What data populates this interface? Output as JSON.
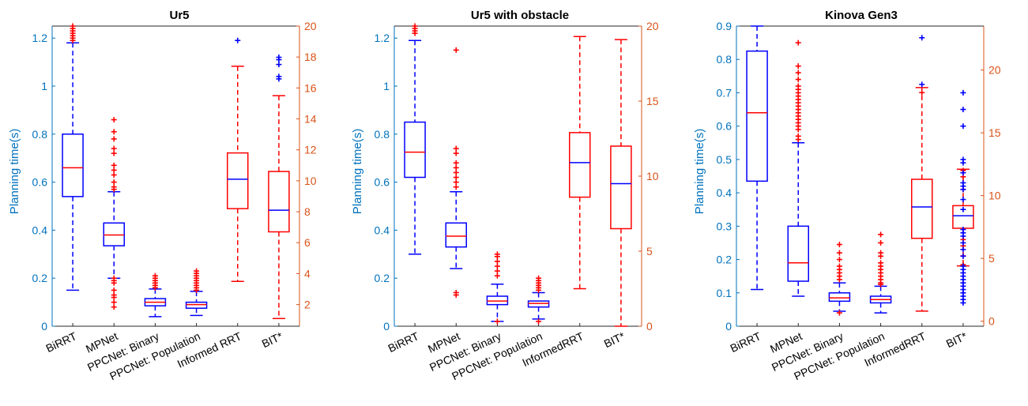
{
  "colors": {
    "left_axis": "#0072BD",
    "right_axis": "#D95319",
    "blue_series": "#0000FF",
    "red_series": "#FF0000",
    "axis_box": "#262626"
  },
  "chart_data": [
    {
      "type": "boxplot",
      "title": "Ur5",
      "ylabel": "Planning time(s)",
      "categories": [
        "BiRRT",
        "MPNet",
        "PPCNet: Binary",
        "PPCNet: Population",
        "Informed RRT",
        "BIT*"
      ],
      "left_ylim": [
        0,
        1.25
      ],
      "left_yticks": [
        "0",
        "0.2",
        "0.4",
        "0.6",
        "0.8",
        "1",
        "1.2"
      ],
      "left_ytick_values": [
        0,
        0.2,
        0.4,
        0.6,
        0.8,
        1.0,
        1.2
      ],
      "right_ylim": [
        0.6,
        20.0
      ],
      "right_yticks": [
        "2",
        "4",
        "6",
        "8",
        "10",
        "12",
        "14",
        "16",
        "18",
        "20"
      ],
      "right_ytick_values": [
        2,
        4,
        6,
        8,
        10,
        12,
        14,
        16,
        18,
        20
      ],
      "boxes": [
        {
          "category": "BiRRT",
          "axis": "left",
          "color": "blue",
          "whisker_low": 0.15,
          "q1": 0.54,
          "median": 0.66,
          "q3": 0.8,
          "whisker_high": 1.18,
          "outliers": [
            1.19,
            1.2,
            1.21,
            1.22,
            1.23,
            1.24,
            1.25
          ]
        },
        {
          "category": "MPNet",
          "axis": "left",
          "color": "blue",
          "whisker_low": 0.2,
          "q1": 0.335,
          "median": 0.38,
          "q3": 0.43,
          "whisker_high": 0.56,
          "outliers": [
            0.08,
            0.1,
            0.12,
            0.13,
            0.15,
            0.18,
            0.19,
            0.2,
            0.57,
            0.58,
            0.6,
            0.63,
            0.65,
            0.67,
            0.72,
            0.74,
            0.78,
            0.81,
            0.86
          ]
        },
        {
          "category": "PPCNet: Binary",
          "axis": "left",
          "color": "blue",
          "whisker_low": 0.04,
          "q1": 0.085,
          "median": 0.1,
          "q3": 0.115,
          "whisker_high": 0.155,
          "outliers": [
            0.16,
            0.17,
            0.18,
            0.19,
            0.2,
            0.21
          ]
        },
        {
          "category": "PPCNet: Population",
          "axis": "left",
          "color": "blue",
          "whisker_low": 0.045,
          "q1": 0.075,
          "median": 0.09,
          "q3": 0.1,
          "whisker_high": 0.145,
          "outliers": [
            0.15,
            0.16,
            0.17,
            0.18,
            0.19,
            0.2,
            0.21,
            0.22,
            0.23
          ]
        },
        {
          "category": "Informed RRT",
          "axis": "right",
          "color": "red",
          "whisker_low": 3.5,
          "q1": 8.2,
          "median": 10.1,
          "q3": 11.8,
          "whisker_high": 17.4,
          "outliers": [],
          "extra_outliers": [
            {
              "axis": "left",
              "color": "blue",
              "value": 1.19
            }
          ]
        },
        {
          "category": "BIT*",
          "axis": "right",
          "color": "red",
          "whisker_low": 1.1,
          "q1": 6.7,
          "median": 8.1,
          "q3": 10.6,
          "whisker_high": 15.5,
          "outliers": [],
          "extra_outliers": [
            {
              "axis": "left",
              "color": "blue",
              "value": 1.03
            },
            {
              "axis": "left",
              "color": "blue",
              "value": 1.04
            },
            {
              "axis": "left",
              "color": "blue",
              "value": 1.09
            },
            {
              "axis": "left",
              "color": "blue",
              "value": 1.11
            },
            {
              "axis": "left",
              "color": "blue",
              "value": 1.12
            }
          ]
        }
      ]
    },
    {
      "type": "boxplot",
      "title": "Ur5 with obstacle",
      "ylabel": "Planning time(s)",
      "categories": [
        "BiRRT",
        "MPNet",
        "PPCNet: Binary",
        "PPCNet: Population",
        "InformedRRT",
        "BIT*"
      ],
      "left_ylim": [
        0,
        1.25
      ],
      "left_yticks": [
        "0",
        "0.2",
        "0.4",
        "0.6",
        "0.8",
        "1",
        "1.2"
      ],
      "left_ytick_values": [
        0,
        0.2,
        0.4,
        0.6,
        0.8,
        1.0,
        1.2
      ],
      "right_ylim": [
        0,
        20
      ],
      "right_yticks": [
        "0",
        "5",
        "10",
        "15",
        "20"
      ],
      "right_ytick_values": [
        0,
        5,
        10,
        15,
        20
      ],
      "boxes": [
        {
          "category": "BiRRT",
          "axis": "left",
          "color": "blue",
          "whisker_low": 0.3,
          "q1": 0.62,
          "median": 0.725,
          "q3": 0.85,
          "whisker_high": 1.19,
          "outliers": [
            1.22,
            1.23,
            1.24,
            1.25
          ]
        },
        {
          "category": "MPNet",
          "axis": "left",
          "color": "blue",
          "whisker_low": 0.24,
          "q1": 0.33,
          "median": 0.375,
          "q3": 0.43,
          "whisker_high": 0.56,
          "outliers": [
            0.13,
            0.14,
            0.58,
            0.6,
            0.62,
            0.64,
            0.66,
            0.68,
            0.72,
            0.74,
            1.15
          ]
        },
        {
          "category": "PPCNet: Binary",
          "axis": "left",
          "color": "blue",
          "whisker_low": 0.02,
          "q1": 0.09,
          "median": 0.105,
          "q3": 0.125,
          "whisker_high": 0.175,
          "outliers": [
            0.02,
            0.21,
            0.23,
            0.25,
            0.27,
            0.29,
            0.3
          ]
        },
        {
          "category": "PPCNet: Population",
          "axis": "left",
          "color": "blue",
          "whisker_low": 0.03,
          "q1": 0.08,
          "median": 0.095,
          "q3": 0.105,
          "whisker_high": 0.14,
          "outliers": [
            0.02,
            0.15,
            0.16,
            0.17,
            0.18,
            0.19,
            0.2
          ]
        },
        {
          "category": "InformedRRT",
          "axis": "right",
          "color": "red",
          "whisker_low": 2.5,
          "q1": 8.6,
          "median": 10.9,
          "q3": 12.9,
          "whisker_high": 19.3,
          "outliers": []
        },
        {
          "category": "BIT*",
          "axis": "right",
          "color": "red",
          "whisker_low": 0.0,
          "q1": 6.5,
          "median": 9.5,
          "q3": 12.0,
          "whisker_high": 19.1,
          "outliers": []
        }
      ]
    },
    {
      "type": "boxplot",
      "title": "Kinova Gen3",
      "ylabel": "Planning time(s)",
      "categories": [
        "BiRRT",
        "MPNet",
        "PPCNet: Binary",
        "PPCNet: Population",
        "InformedRRT",
        "BIT*"
      ],
      "left_ylim": [
        0,
        0.9
      ],
      "left_yticks": [
        "0",
        "0.1",
        "0.2",
        "0.3",
        "0.4",
        "0.5",
        "0.6",
        "0.7",
        "0.8",
        "0.9"
      ],
      "left_ytick_values": [
        0,
        0.1,
        0.2,
        0.3,
        0.4,
        0.5,
        0.6,
        0.7,
        0.8,
        0.9
      ],
      "right_ylim": [
        -0.4,
        23.5
      ],
      "right_yticks": [
        "0",
        "5",
        "10",
        "15",
        "20"
      ],
      "right_ytick_values": [
        0,
        5,
        10,
        15,
        20
      ],
      "boxes": [
        {
          "category": "BiRRT",
          "axis": "left",
          "color": "blue",
          "whisker_low": 0.11,
          "q1": 0.435,
          "median": 0.64,
          "q3": 0.825,
          "whisker_high": 0.9,
          "outliers": []
        },
        {
          "category": "MPNet",
          "axis": "left",
          "color": "blue",
          "whisker_low": 0.09,
          "q1": 0.135,
          "median": 0.19,
          "q3": 0.3,
          "whisker_high": 0.55,
          "outliers": [
            0.56,
            0.57,
            0.59,
            0.6,
            0.61,
            0.62,
            0.63,
            0.64,
            0.65,
            0.66,
            0.67,
            0.68,
            0.69,
            0.7,
            0.71,
            0.72,
            0.74,
            0.76,
            0.78,
            0.85
          ]
        },
        {
          "category": "PPCNet: Binary",
          "axis": "left",
          "color": "blue",
          "whisker_low": 0.045,
          "q1": 0.075,
          "median": 0.085,
          "q3": 0.1,
          "whisker_high": 0.13,
          "outliers": [
            0.04,
            0.14,
            0.15,
            0.16,
            0.17,
            0.18,
            0.2,
            0.22,
            0.245
          ]
        },
        {
          "category": "PPCNet: Population",
          "axis": "left",
          "color": "blue",
          "whisker_low": 0.04,
          "q1": 0.07,
          "median": 0.08,
          "q3": 0.09,
          "whisker_high": 0.12,
          "outliers": [
            0.125,
            0.13,
            0.14,
            0.15,
            0.16,
            0.17,
            0.18,
            0.19,
            0.21,
            0.22,
            0.25,
            0.275
          ]
        },
        {
          "category": "InformedRRT",
          "axis": "right",
          "color": "red",
          "whisker_low": 0.8,
          "q1": 6.6,
          "median": 9.1,
          "q3": 11.3,
          "whisker_high": 18.6,
          "outliers": [
            18.2
          ],
          "extra_outliers": [
            {
              "axis": "left",
              "color": "blue",
              "value": 0.725
            },
            {
              "axis": "left",
              "color": "blue",
              "value": 0.865
            }
          ]
        },
        {
          "category": "BIT*",
          "axis": "right",
          "color": "red",
          "whisker_low": 4.4,
          "q1": 7.4,
          "median": 8.4,
          "q3": 9.2,
          "whisker_high": 12.1,
          "outliers": [
            4.5,
            5.2,
            6.0,
            6.5,
            10.5,
            11.5,
            12.0
          ],
          "extra_outliers": [
            {
              "axis": "left",
              "color": "blue",
              "value": 0.07
            },
            {
              "axis": "left",
              "color": "blue",
              "value": 0.08
            },
            {
              "axis": "left",
              "color": "blue",
              "value": 0.09
            },
            {
              "axis": "left",
              "color": "blue",
              "value": 0.1
            },
            {
              "axis": "left",
              "color": "blue",
              "value": 0.11
            },
            {
              "axis": "left",
              "color": "blue",
              "value": 0.12
            },
            {
              "axis": "left",
              "color": "blue",
              "value": 0.13
            },
            {
              "axis": "left",
              "color": "blue",
              "value": 0.14
            },
            {
              "axis": "left",
              "color": "blue",
              "value": 0.15
            },
            {
              "axis": "left",
              "color": "blue",
              "value": 0.16
            },
            {
              "axis": "left",
              "color": "blue",
              "value": 0.17
            },
            {
              "axis": "left",
              "color": "blue",
              "value": 0.18
            },
            {
              "axis": "left",
              "color": "blue",
              "value": 0.21
            },
            {
              "axis": "left",
              "color": "blue",
              "value": 0.23
            },
            {
              "axis": "left",
              "color": "blue",
              "value": 0.25
            },
            {
              "axis": "left",
              "color": "blue",
              "value": 0.27
            },
            {
              "axis": "left",
              "color": "blue",
              "value": 0.28
            },
            {
              "axis": "left",
              "color": "blue",
              "value": 0.29
            },
            {
              "axis": "left",
              "color": "blue",
              "value": 0.35
            },
            {
              "axis": "left",
              "color": "blue",
              "value": 0.38
            },
            {
              "axis": "left",
              "color": "blue",
              "value": 0.41
            },
            {
              "axis": "left",
              "color": "blue",
              "value": 0.42
            },
            {
              "axis": "left",
              "color": "blue",
              "value": 0.43
            },
            {
              "axis": "left",
              "color": "blue",
              "value": 0.46
            },
            {
              "axis": "left",
              "color": "blue",
              "value": 0.49
            },
            {
              "axis": "left",
              "color": "blue",
              "value": 0.5
            },
            {
              "axis": "left",
              "color": "blue",
              "value": 0.6
            },
            {
              "axis": "left",
              "color": "blue",
              "value": 0.65
            },
            {
              "axis": "left",
              "color": "blue",
              "value": 0.7
            }
          ]
        }
      ]
    }
  ]
}
